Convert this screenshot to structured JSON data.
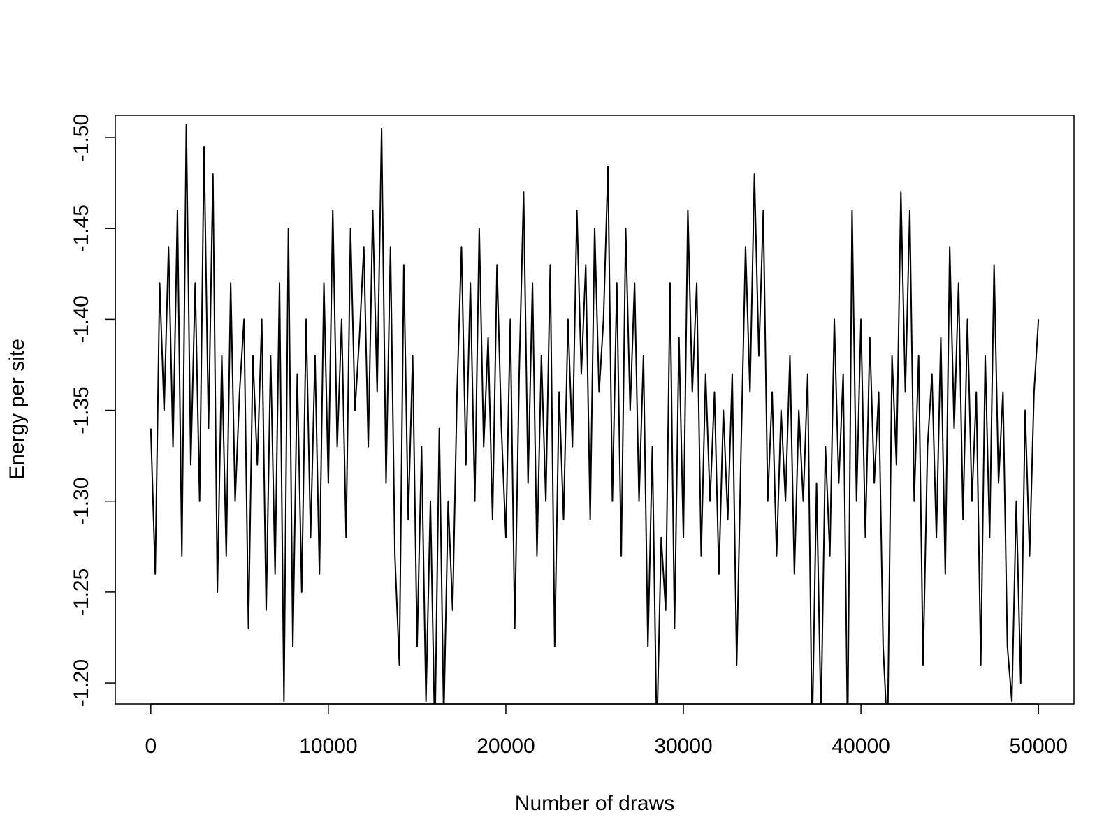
{
  "chart_data": {
    "type": "line",
    "x_label": "Number of draws",
    "y_label": "Energy per site",
    "color": "#000000",
    "xlim": [
      -2000,
      52000
    ],
    "ylim": [
      -1.1885,
      -1.5123
    ],
    "xticks": [
      0,
      10000,
      20000,
      30000,
      40000,
      50000
    ],
    "yticks": [
      {
        "value": -1.2,
        "label": "-1.20"
      },
      {
        "value": -1.25,
        "label": "-1.25"
      },
      {
        "value": -1.3,
        "label": "-1.30"
      },
      {
        "value": -1.35,
        "label": "-1.35"
      },
      {
        "value": -1.4,
        "label": "-1.40"
      },
      {
        "value": -1.45,
        "label": "-1.45"
      },
      {
        "value": -1.5,
        "label": "-1.50"
      }
    ],
    "x": [
      0,
      250,
      500,
      750,
      1000,
      1250,
      1500,
      1750,
      2000,
      2250,
      2500,
      2750,
      3000,
      3250,
      3500,
      3750,
      4000,
      4250,
      4500,
      4750,
      5000,
      5250,
      5500,
      5750,
      6000,
      6250,
      6500,
      6750,
      7000,
      7250,
      7500,
      7750,
      8000,
      8250,
      8500,
      8750,
      9000,
      9250,
      9500,
      9750,
      10000,
      10250,
      10500,
      10750,
      11000,
      11250,
      11500,
      11750,
      12000,
      12250,
      12500,
      12750,
      13000,
      13250,
      13500,
      13750,
      14000,
      14250,
      14500,
      14750,
      15000,
      15250,
      15500,
      15750,
      16000,
      16250,
      16500,
      16750,
      17000,
      17250,
      17500,
      17750,
      18000,
      18250,
      18500,
      18750,
      19000,
      19250,
      19500,
      19750,
      20000,
      20250,
      20500,
      20750,
      21000,
      21250,
      21500,
      21750,
      22000,
      22250,
      22500,
      22750,
      23000,
      23250,
      23500,
      23750,
      24000,
      24250,
      24500,
      24750,
      25000,
      25250,
      25500,
      25750,
      26000,
      26250,
      26500,
      26750,
      27000,
      27250,
      27500,
      27750,
      28000,
      28250,
      28500,
      28750,
      29000,
      29250,
      29500,
      29750,
      30000,
      30250,
      30500,
      30750,
      31000,
      31250,
      31500,
      31750,
      32000,
      32250,
      32500,
      32750,
      33000,
      33250,
      33500,
      33750,
      34000,
      34250,
      34500,
      34750,
      35000,
      35250,
      35500,
      35750,
      36000,
      36250,
      36500,
      36750,
      37000,
      37250,
      37500,
      37750,
      38000,
      38250,
      38500,
      38750,
      39000,
      39250,
      39500,
      39750,
      40000,
      40250,
      40500,
      40750,
      41000,
      41250,
      41500,
      41750,
      42000,
      42250,
      42500,
      42750,
      43000,
      43250,
      43500,
      43750,
      44000,
      44250,
      44500,
      44750,
      45000,
      45250,
      45500,
      45750,
      46000,
      46250,
      46500,
      46750,
      47000,
      47250,
      47500,
      47750,
      48000,
      48250,
      48500,
      48750,
      49000,
      49250,
      49500,
      49750,
      50000
    ],
    "values": [
      -1.34,
      -1.26,
      -1.42,
      -1.35,
      -1.44,
      -1.33,
      -1.46,
      -1.27,
      -1.507,
      -1.32,
      -1.42,
      -1.3,
      -1.495,
      -1.34,
      -1.48,
      -1.25,
      -1.38,
      -1.27,
      -1.42,
      -1.3,
      -1.36,
      -1.4,
      -1.23,
      -1.38,
      -1.32,
      -1.4,
      -1.24,
      -1.38,
      -1.26,
      -1.42,
      -1.19,
      -1.45,
      -1.22,
      -1.37,
      -1.25,
      -1.4,
      -1.28,
      -1.38,
      -1.26,
      -1.42,
      -1.31,
      -1.46,
      -1.33,
      -1.4,
      -1.28,
      -1.45,
      -1.35,
      -1.39,
      -1.44,
      -1.33,
      -1.46,
      -1.36,
      -1.505,
      -1.31,
      -1.44,
      -1.27,
      -1.21,
      -1.43,
      -1.29,
      -1.38,
      -1.22,
      -1.33,
      -1.19,
      -1.3,
      -1.17,
      -1.34,
      -1.18,
      -1.3,
      -1.24,
      -1.36,
      -1.44,
      -1.32,
      -1.42,
      -1.3,
      -1.45,
      -1.33,
      -1.39,
      -1.29,
      -1.43,
      -1.34,
      -1.28,
      -1.4,
      -1.23,
      -1.37,
      -1.47,
      -1.31,
      -1.42,
      -1.27,
      -1.38,
      -1.3,
      -1.43,
      -1.22,
      -1.36,
      -1.29,
      -1.4,
      -1.33,
      -1.46,
      -1.37,
      -1.43,
      -1.29,
      -1.45,
      -1.36,
      -1.4,
      -1.484,
      -1.3,
      -1.42,
      -1.27,
      -1.45,
      -1.35,
      -1.42,
      -1.3,
      -1.38,
      -1.22,
      -1.33,
      -1.17,
      -1.28,
      -1.24,
      -1.42,
      -1.23,
      -1.39,
      -1.28,
      -1.46,
      -1.36,
      -1.42,
      -1.27,
      -1.37,
      -1.3,
      -1.36,
      -1.26,
      -1.35,
      -1.29,
      -1.37,
      -1.21,
      -1.33,
      -1.44,
      -1.36,
      -1.48,
      -1.38,
      -1.46,
      -1.3,
      -1.36,
      -1.27,
      -1.35,
      -1.3,
      -1.38,
      -1.26,
      -1.35,
      -1.3,
      -1.37,
      -1.17,
      -1.31,
      -1.18,
      -1.33,
      -1.27,
      -1.4,
      -1.31,
      -1.37,
      -1.17,
      -1.46,
      -1.3,
      -1.4,
      -1.28,
      -1.39,
      -1.31,
      -1.36,
      -1.22,
      -1.17,
      -1.38,
      -1.32,
      -1.47,
      -1.36,
      -1.46,
      -1.3,
      -1.38,
      -1.21,
      -1.33,
      -1.37,
      -1.28,
      -1.39,
      -1.26,
      -1.44,
      -1.34,
      -1.42,
      -1.29,
      -1.4,
      -1.3,
      -1.36,
      -1.21,
      -1.38,
      -1.28,
      -1.43,
      -1.31,
      -1.36,
      -1.22,
      -1.19,
      -1.3,
      -1.2,
      -1.35,
      -1.27,
      -1.36,
      -1.4
    ]
  }
}
